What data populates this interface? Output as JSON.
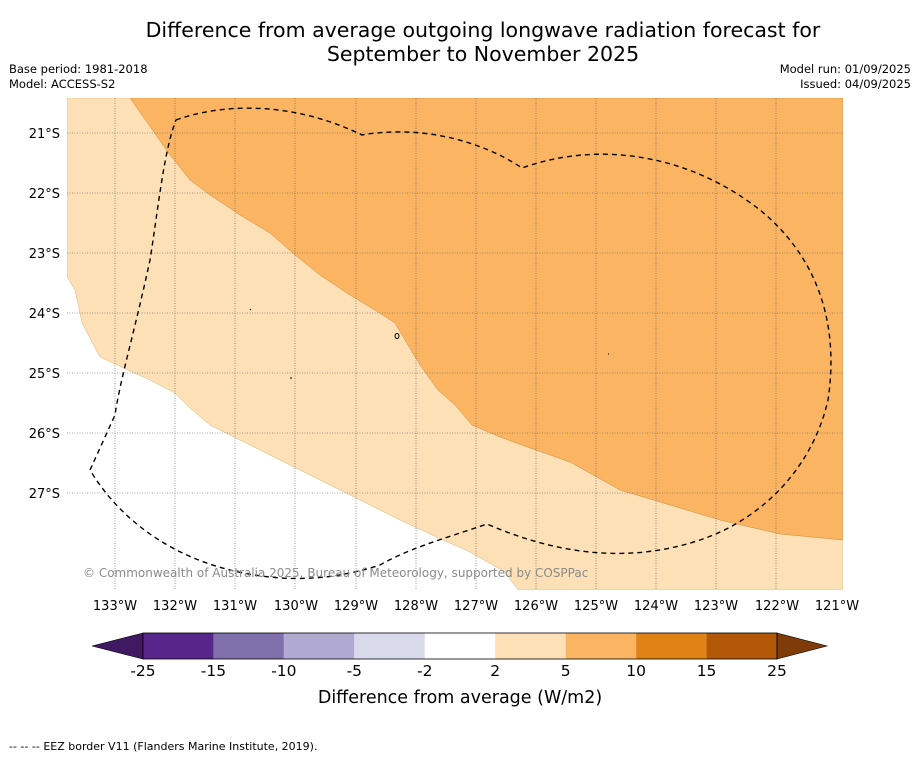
{
  "title_line1": "Difference from average outgoing longwave radiation forecast for",
  "title_line2": "September to November 2025",
  "base_period": "Base period: 1981-2018",
  "model": "Model: ACCESS-S2",
  "model_run": "Model run: 01/09/2025",
  "issued": "Issued: 04/09/2025",
  "copyright": "© Commonwealth of Australia 2025, Bureau of Meteorology, supported by COSPPac",
  "lat_labels": [
    "21°S",
    "22°S",
    "23°S",
    "24°S",
    "25°S",
    "26°S",
    "27°S"
  ],
  "lon_labels": [
    "133°W",
    "132°W",
    "131°W",
    "130°W",
    "129°W",
    "128°W",
    "127°W",
    "126°W",
    "125°W",
    "124°W",
    "123°W",
    "122°W",
    "121°W"
  ],
  "colorbar": {
    "title": "Difference from average (W/m2)",
    "tick_labels": [
      "-25",
      "-15",
      "-10",
      "-5",
      "-2",
      "2",
      "5",
      "10",
      "15",
      "25"
    ],
    "colors": [
      "#3f1a63",
      "#57268a",
      "#7f70ab",
      "#b0aad2",
      "#d9d9ec",
      "#ffffff",
      "#fde0b5",
      "#fbb562",
      "#e08214",
      "#b35806",
      "#7f3b08"
    ]
  },
  "legend": {
    "marker": "--  --  --",
    "text": "EEZ border V11 (Flanders Marine Institute, 2019)."
  },
  "colors": {
    "anomaly_2_5": "#fde0b5",
    "anomaly_5_10": "#fbb562",
    "anomaly_neutral": "#ffffff"
  }
}
